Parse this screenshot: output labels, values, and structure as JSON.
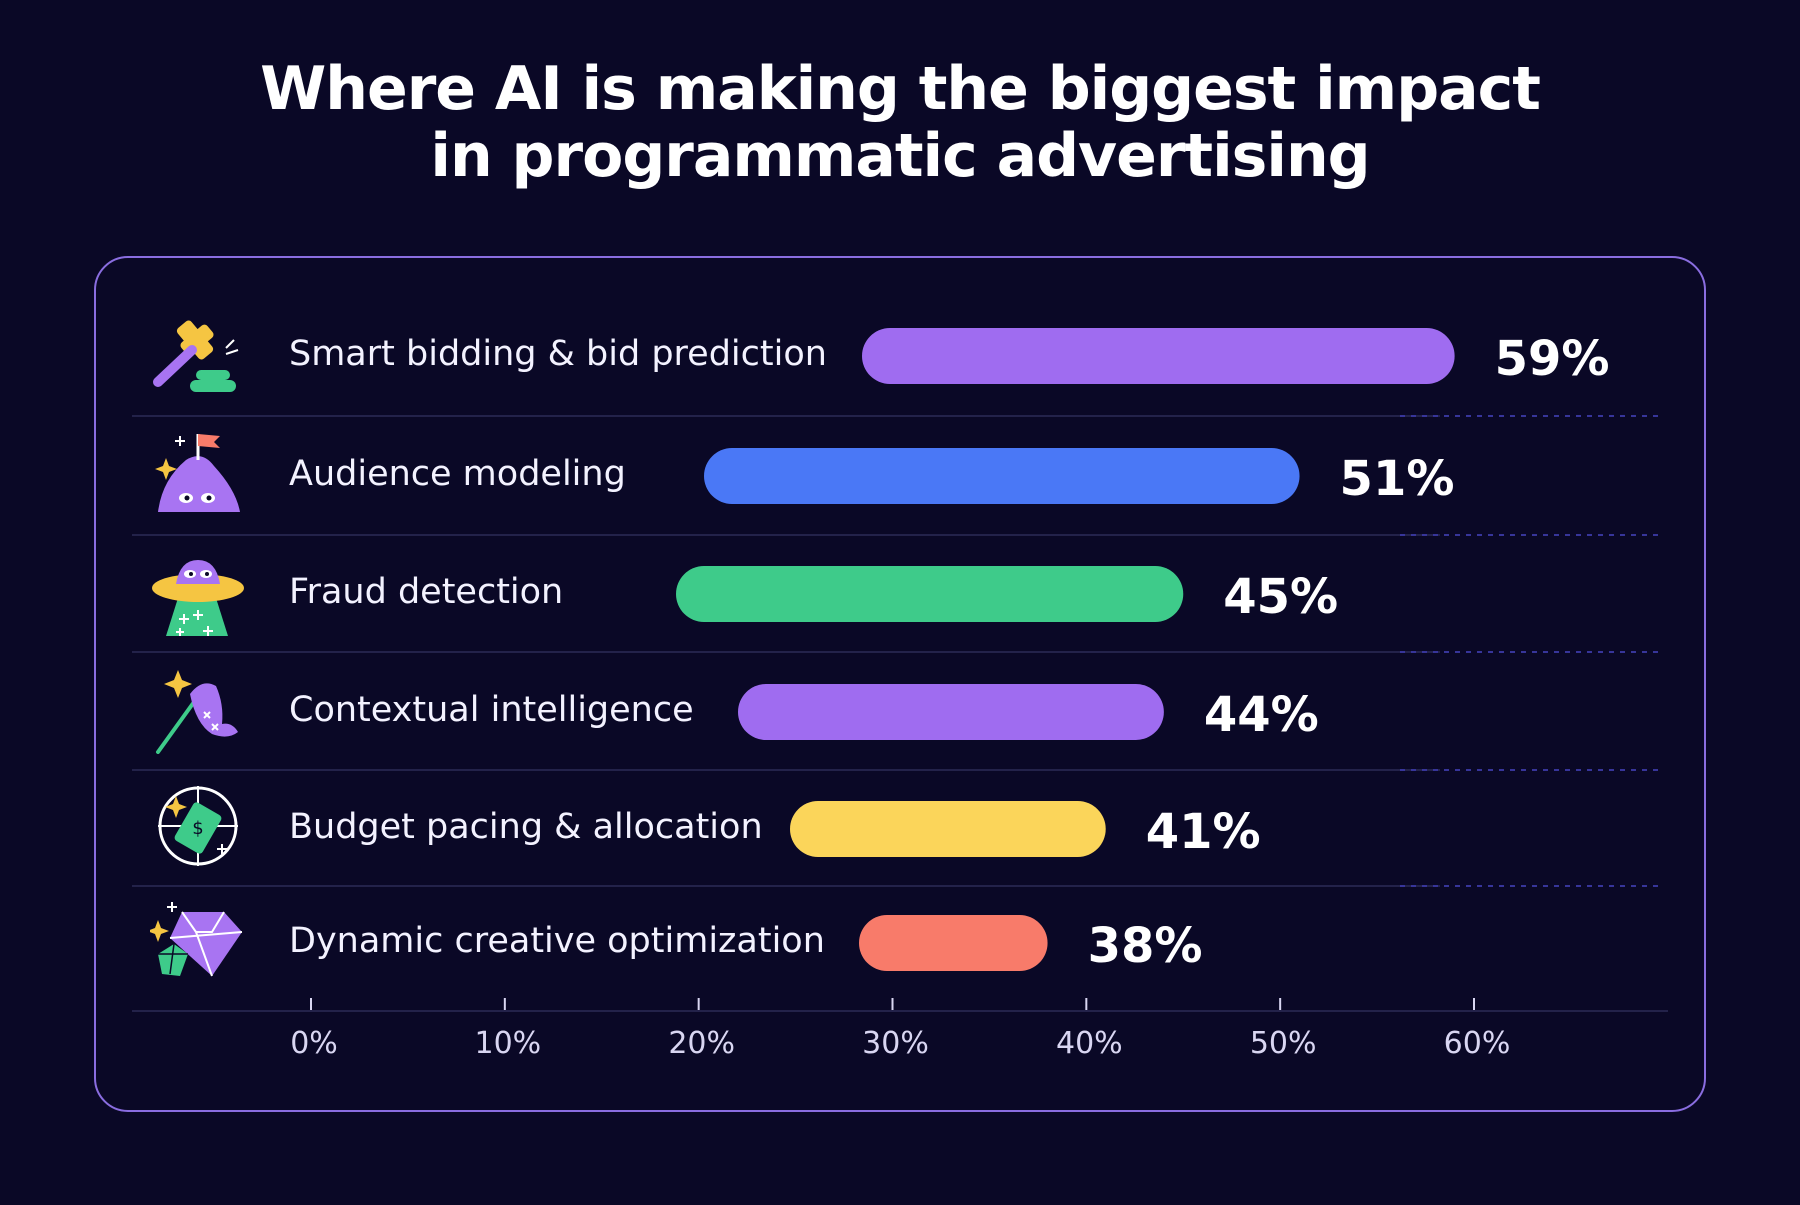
{
  "title": {
    "line1": "Where AI is making the biggest impact",
    "line2": "in programmatic advertising"
  },
  "chart_data": {
    "type": "bar",
    "orientation": "horizontal",
    "categories": [
      "Smart bidding & bid prediction",
      "Audience modeling",
      "Fraud detection",
      "Contextual intelligence",
      "Budget pacing & allocation",
      "Dynamic creative optimization"
    ],
    "values": [
      59,
      51,
      45,
      44,
      41,
      38
    ],
    "value_labels": [
      "59%",
      "51%",
      "45%",
      "44%",
      "41%",
      "38%"
    ],
    "bar_colors": [
      "#9f6cf0",
      "#4a78f6",
      "#3ecb8a",
      "#9f6cf0",
      "#fbd55a",
      "#f87b6a"
    ],
    "icons": [
      "gavel-icon",
      "mountain-flag-icon",
      "ufo-icon",
      "butterfly-net-icon",
      "money-target-icon",
      "gems-icon"
    ],
    "xlim": [
      0,
      60
    ],
    "xticks": [
      "0%",
      "10%",
      "20%",
      "30%",
      "40%",
      "50%",
      "60%"
    ],
    "grid": false,
    "legend": "none"
  },
  "colors": {
    "background": "#0a0826",
    "card_border": "#8a6de0",
    "divider": "#23224a",
    "dotted_guide": "#37359a"
  }
}
